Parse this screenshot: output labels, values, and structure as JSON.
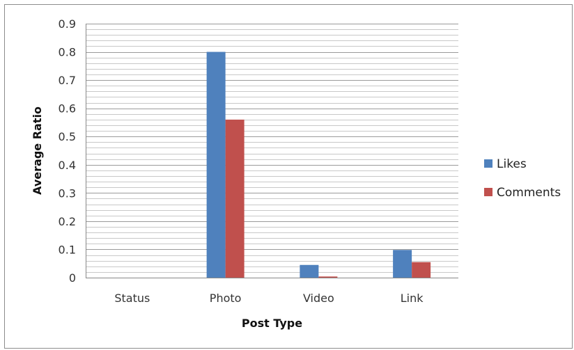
{
  "chart_data": {
    "type": "bar",
    "categories": [
      "Status",
      "Photo",
      "Video",
      "Link"
    ],
    "series": [
      {
        "name": "Likes",
        "values": [
          0,
          0.8,
          0.045,
          0.098
        ],
        "color": "#4F81BD"
      },
      {
        "name": "Comments",
        "values": [
          0,
          0.56,
          0.004,
          0.055
        ],
        "color": "#C0504D"
      }
    ],
    "xlabel": "Post Type",
    "ylabel": "Average Ratio",
    "ylim": [
      0,
      0.9
    ],
    "yticks": [
      "0",
      "0.1",
      "0.2",
      "0.3",
      "0.4",
      "0.5",
      "0.6",
      "0.7",
      "0.8",
      "0.9"
    ],
    "minor_grid_step": 0.02,
    "grid": true,
    "legend_position": "right"
  }
}
